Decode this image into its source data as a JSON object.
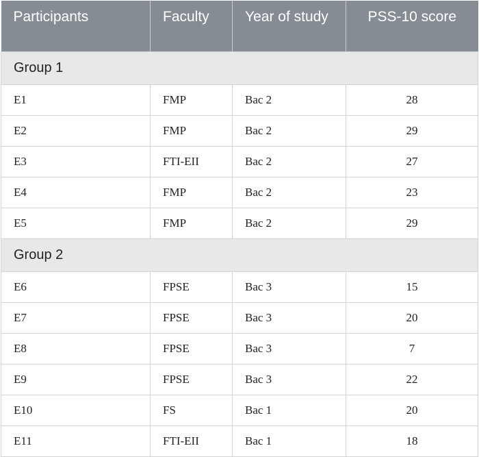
{
  "table": {
    "headers": [
      "Participants",
      "Faculty",
      "Year of study",
      "PSS-10 score"
    ],
    "groups": [
      {
        "label": "Group 1",
        "rows": [
          {
            "participant": "E1",
            "faculty": "FMP",
            "year": "Bac 2",
            "score": "28"
          },
          {
            "participant": "E2",
            "faculty": "FMP",
            "year": "Bac 2",
            "score": "29"
          },
          {
            "participant": "E3",
            "faculty": "FTI-EII",
            "year": "Bac 2",
            "score": "27"
          },
          {
            "participant": "E4",
            "faculty": "FMP",
            "year": "Bac 2",
            "score": "23"
          },
          {
            "participant": "E5",
            "faculty": "FMP",
            "year": "Bac 2",
            "score": "29"
          }
        ]
      },
      {
        "label": "Group 2",
        "rows": [
          {
            "participant": "E6",
            "faculty": "FPSE",
            "year": "Bac 3",
            "score": "15"
          },
          {
            "participant": "E7",
            "faculty": "FPSE",
            "year": "Bac 3",
            "score": "20"
          },
          {
            "participant": "E8",
            "faculty": "FPSE",
            "year": "Bac 3",
            "score": "7"
          },
          {
            "participant": "E9",
            "faculty": "FPSE",
            "year": "Bac 3",
            "score": "22"
          },
          {
            "participant": "E10",
            "faculty": "FS",
            "year": "Bac 1",
            "score": "20"
          },
          {
            "participant": "E11",
            "faculty": "FTI-EII",
            "year": "Bac 1",
            "score": "18"
          }
        ]
      }
    ]
  },
  "colors": {
    "header_bg": "#858c93",
    "group_bg": "#e7e8ea",
    "border": "#d2d5d8"
  }
}
